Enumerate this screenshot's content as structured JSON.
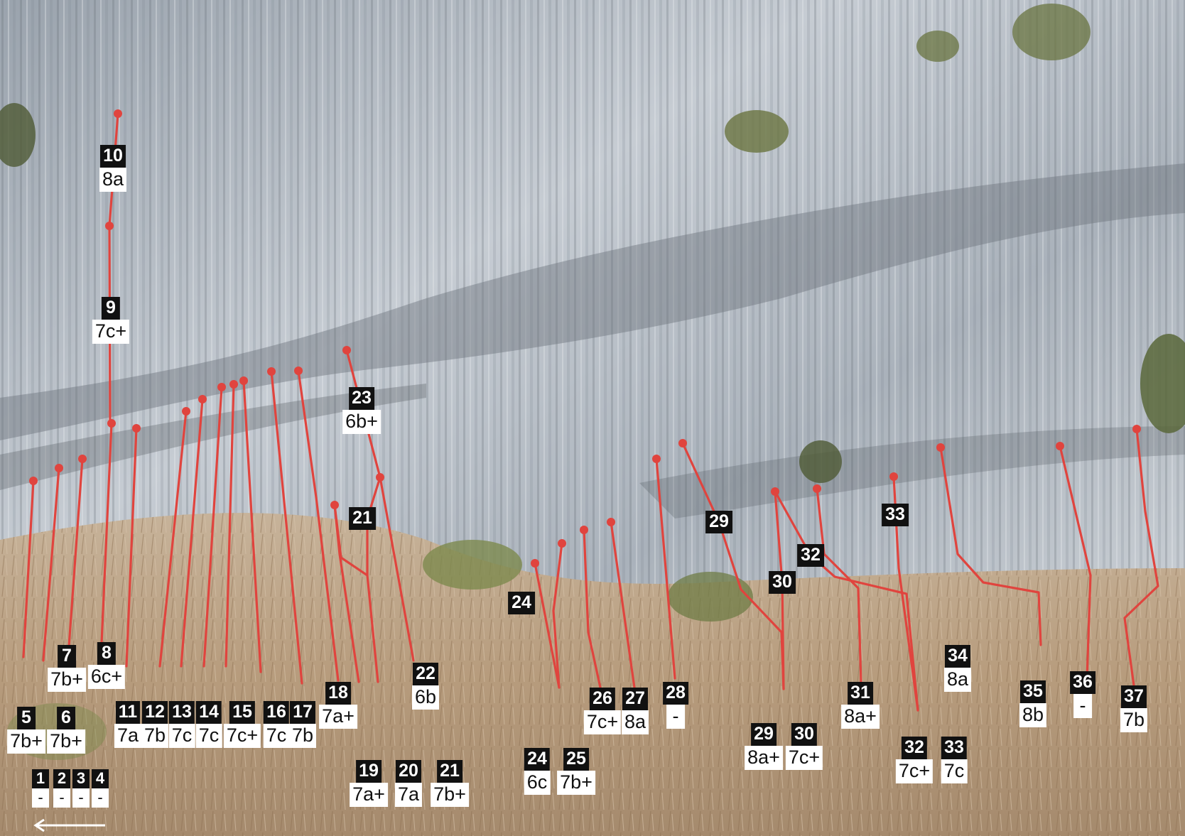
{
  "colors": {
    "route_line": "#e0443e",
    "label_number_bg": "#111111",
    "label_grade_bg": "#ffffff"
  },
  "direction_arrow": "left-arrow",
  "routes": [
    {
      "id": "1",
      "number": "1",
      "grade": "-"
    },
    {
      "id": "2",
      "number": "2",
      "grade": "-"
    },
    {
      "id": "3",
      "number": "3",
      "grade": "-"
    },
    {
      "id": "4",
      "number": "4",
      "grade": "-"
    },
    {
      "id": "5",
      "number": "5",
      "grade": "7b+"
    },
    {
      "id": "6",
      "number": "6",
      "grade": "7b+"
    },
    {
      "id": "7",
      "number": "7",
      "grade": "7b+"
    },
    {
      "id": "8",
      "number": "8",
      "grade": "6c+"
    },
    {
      "id": "9",
      "number": "9",
      "grade": "7c+"
    },
    {
      "id": "10",
      "number": "10",
      "grade": "8a"
    },
    {
      "id": "11",
      "number": "11",
      "grade": "7a"
    },
    {
      "id": "12",
      "number": "12",
      "grade": "7b"
    },
    {
      "id": "13",
      "number": "13",
      "grade": "7c"
    },
    {
      "id": "14",
      "number": "14",
      "grade": "7c"
    },
    {
      "id": "15",
      "number": "15",
      "grade": "7c+"
    },
    {
      "id": "16",
      "number": "16",
      "grade": "7c"
    },
    {
      "id": "17",
      "number": "17",
      "grade": "7b"
    },
    {
      "id": "18",
      "number": "18",
      "grade": "7a+"
    },
    {
      "id": "19",
      "number": "19",
      "grade": "7a+"
    },
    {
      "id": "20",
      "number": "20",
      "grade": "7a"
    },
    {
      "id": "21",
      "number": "21",
      "grade": "7b+"
    },
    {
      "id": "22",
      "number": "22",
      "grade": "6b"
    },
    {
      "id": "23",
      "number": "23",
      "grade": "6b+"
    },
    {
      "id": "24",
      "number": "24",
      "grade": "6c"
    },
    {
      "id": "25",
      "number": "25",
      "grade": "7b+"
    },
    {
      "id": "26",
      "number": "26",
      "grade": "7c+"
    },
    {
      "id": "27",
      "number": "27",
      "grade": "8a"
    },
    {
      "id": "28",
      "number": "28",
      "grade": "-"
    },
    {
      "id": "29",
      "number": "29",
      "grade": "8a+"
    },
    {
      "id": "30",
      "number": "30",
      "grade": "7c+"
    },
    {
      "id": "31",
      "number": "31",
      "grade": "8a+"
    },
    {
      "id": "32",
      "number": "32",
      "grade": "7c+"
    },
    {
      "id": "33",
      "number": "33",
      "grade": "7c"
    },
    {
      "id": "34",
      "number": "34",
      "grade": "8a"
    },
    {
      "id": "35",
      "number": "35",
      "grade": "8b"
    },
    {
      "id": "36",
      "number": "36",
      "grade": "-"
    },
    {
      "id": "37",
      "number": "37",
      "grade": "7b"
    }
  ],
  "line_markers": [
    {
      "id": "m21",
      "number": "21"
    },
    {
      "id": "m24",
      "number": "24"
    },
    {
      "id": "m29",
      "number": "29"
    },
    {
      "id": "m30",
      "number": "30"
    },
    {
      "id": "m32",
      "number": "32"
    },
    {
      "id": "m33",
      "number": "33"
    }
  ]
}
